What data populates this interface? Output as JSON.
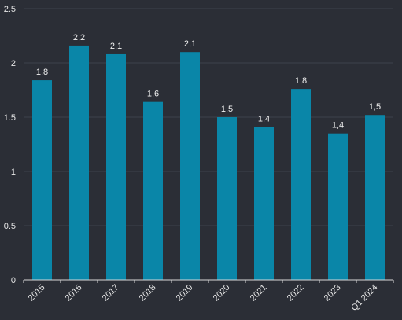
{
  "chart_data": {
    "type": "bar",
    "categories": [
      "2015",
      "2016",
      "2017",
      "2018",
      "2019",
      "2020",
      "2021",
      "2022",
      "2023",
      "Q1 2024"
    ],
    "values": [
      1.84,
      2.16,
      2.08,
      1.64,
      2.1,
      1.5,
      1.41,
      1.76,
      1.35,
      1.52
    ],
    "data_labels": [
      "1,8",
      "2,2",
      "2,1",
      "1,6",
      "2,1",
      "1,5",
      "1,4",
      "1,8",
      "1,4",
      "1,5"
    ],
    "y_ticks": [
      0,
      0.5,
      1,
      1.5,
      2,
      2.5
    ],
    "y_tick_labels": [
      "0",
      "0.5",
      "1",
      "1.5",
      "2",
      "2.5"
    ],
    "ylim": [
      0,
      2.5
    ],
    "grid": true,
    "legend": "none",
    "colors": {
      "background": "#2b2e36",
      "bar": "#0a86a8",
      "gridline": "#3e424c",
      "axis": "#d8d8d8",
      "text": "#e6e6e6"
    }
  }
}
